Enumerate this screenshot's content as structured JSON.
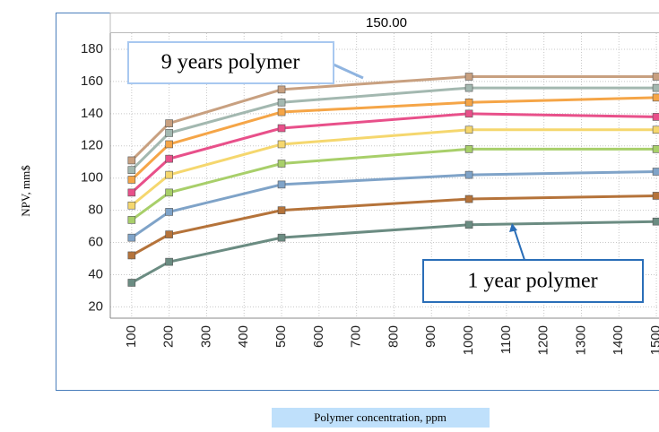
{
  "chart_data": {
    "type": "line",
    "title": "150.00",
    "x_label": "Polymer concentration, ppm",
    "y_label": "NPV, mm$",
    "x": [
      100,
      200,
      500,
      1000,
      1500
    ],
    "series": [
      {
        "color": "#6b8c82",
        "values": [
          35,
          48,
          63,
          71,
          73
        ]
      },
      {
        "color": "#b5733a",
        "values": [
          52,
          65,
          80,
          87,
          89
        ]
      },
      {
        "color": "#7fa3c8",
        "values": [
          63,
          79,
          96,
          102,
          104
        ]
      },
      {
        "color": "#a8cf6a",
        "values": [
          74,
          91,
          109,
          118,
          118
        ]
      },
      {
        "color": "#f5d76e",
        "values": [
          83,
          102,
          121,
          130,
          130
        ]
      },
      {
        "color": "#e8508a",
        "values": [
          91,
          112,
          131,
          140,
          138
        ]
      },
      {
        "color": "#f5a547",
        "values": [
          99,
          121,
          141,
          147,
          150
        ]
      },
      {
        "color": "#a3b8b0",
        "values": [
          105,
          128,
          147,
          156,
          156
        ]
      },
      {
        "color": "#c8a080",
        "values": [
          111,
          134,
          155,
          163,
          163
        ]
      }
    ],
    "annotations": [
      "9 years polymer",
      "1 year polymer"
    ],
    "xlim": [
      43,
      1507
    ],
    "ylim": [
      13,
      190
    ],
    "xticks": [
      100,
      200,
      300,
      400,
      500,
      600,
      700,
      800,
      900,
      1000,
      1100,
      1200,
      1300,
      1400,
      1500
    ],
    "yticks": [
      20,
      40,
      60,
      80,
      100,
      120,
      140,
      160,
      180
    ],
    "grid": true
  }
}
